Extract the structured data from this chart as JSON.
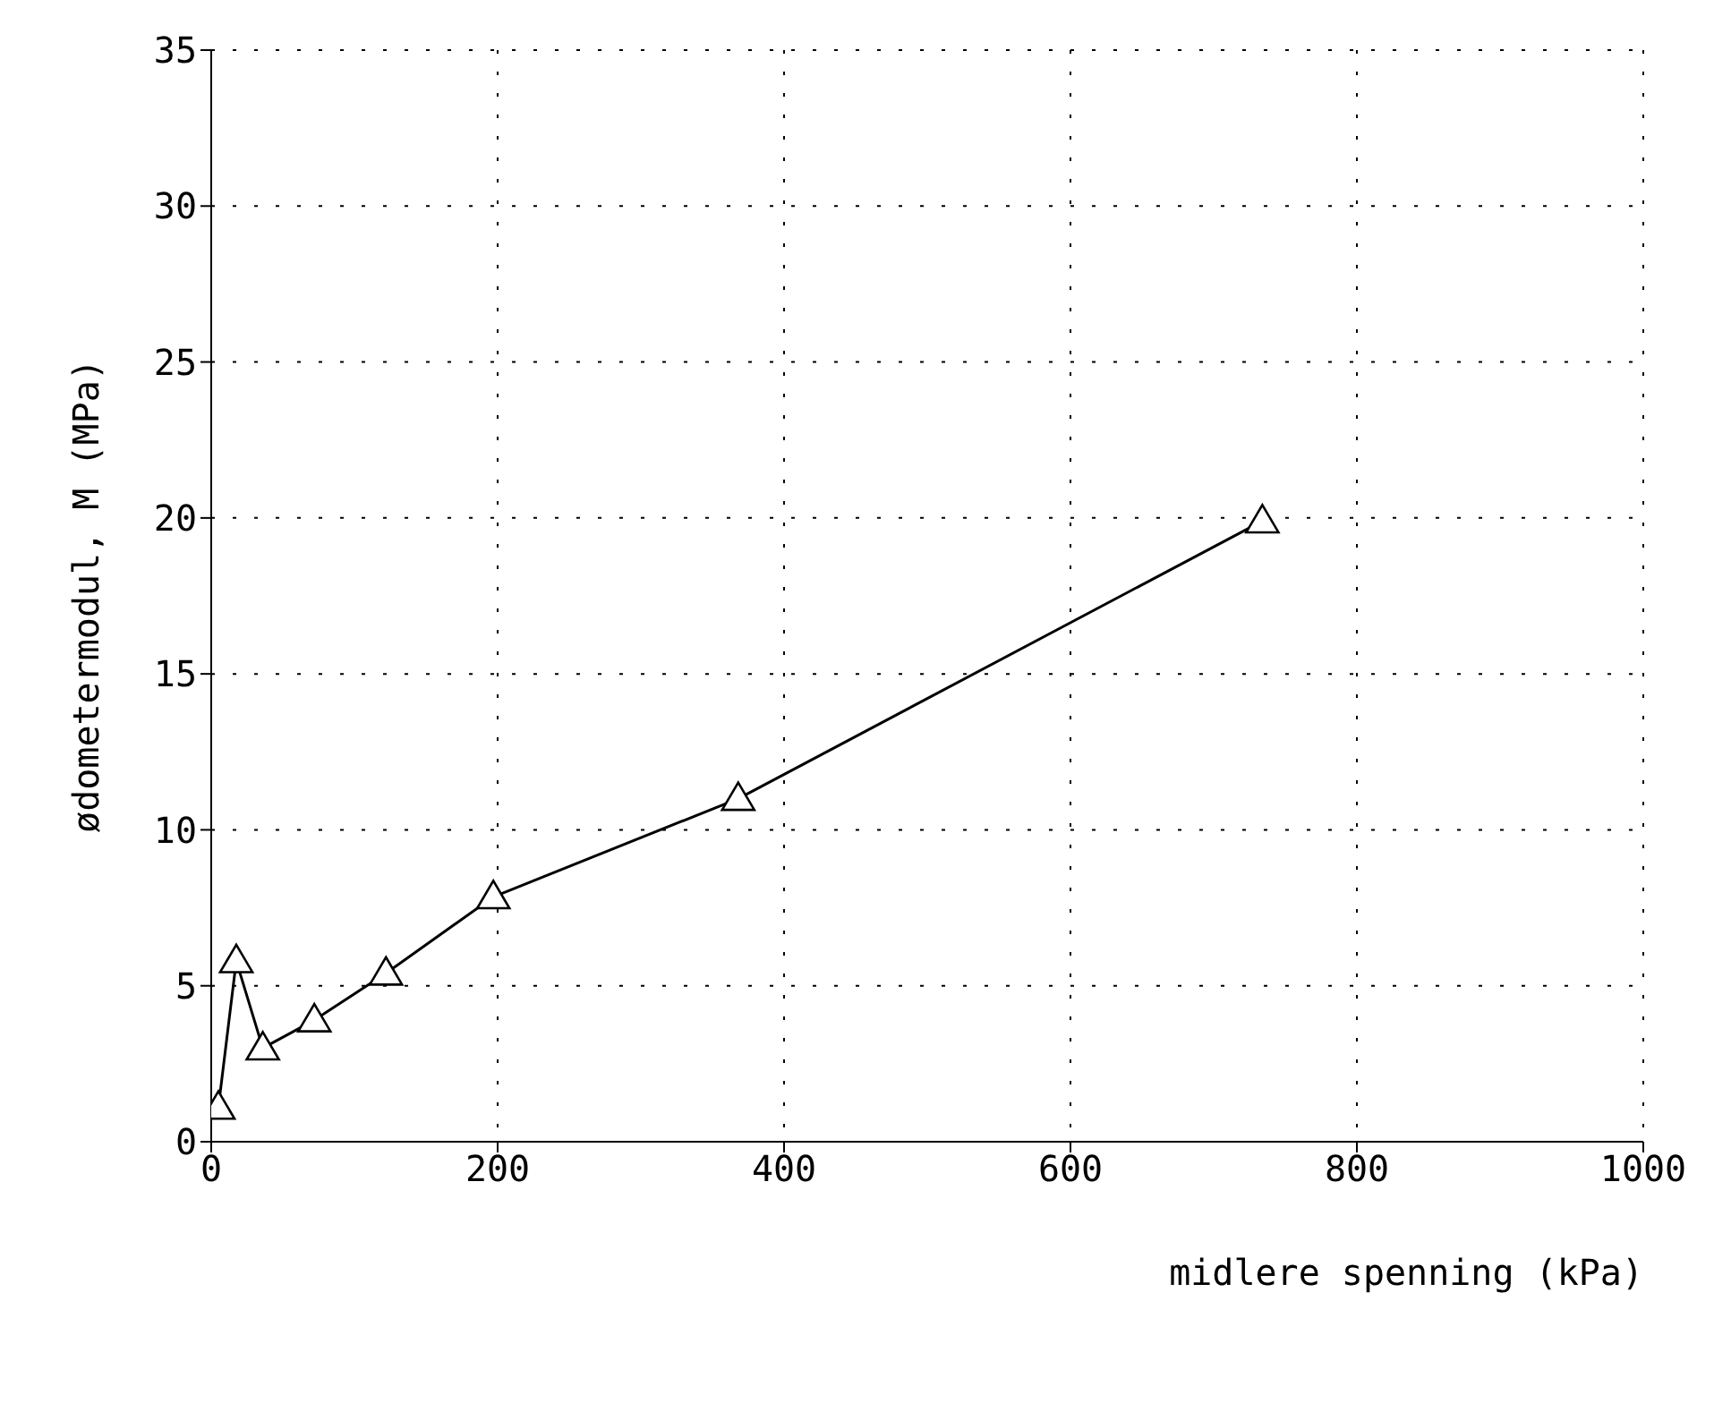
{
  "chart_data": {
    "type": "line",
    "xlabel": "midlere spenning (kPa)",
    "ylabel": "ødometermodul, M (MPa)",
    "x": [
      5,
      17.5,
      36,
      72,
      122,
      197,
      368,
      734
    ],
    "series": [
      {
        "color": "#000000",
        "values": [
          1.1,
          5.8,
          3.0,
          3.9,
          5.4,
          7.85,
          11.0,
          19.9
        ]
      }
    ],
    "xlim": [
      0,
      1000
    ],
    "xticks": [
      0,
      200,
      400,
      600,
      800,
      1000
    ],
    "ylim": [
      0,
      35
    ],
    "yticks": [
      0,
      5,
      10,
      15,
      20,
      25,
      30,
      35
    ],
    "grid": true,
    "marker": "triangle",
    "line_style": "solid"
  }
}
